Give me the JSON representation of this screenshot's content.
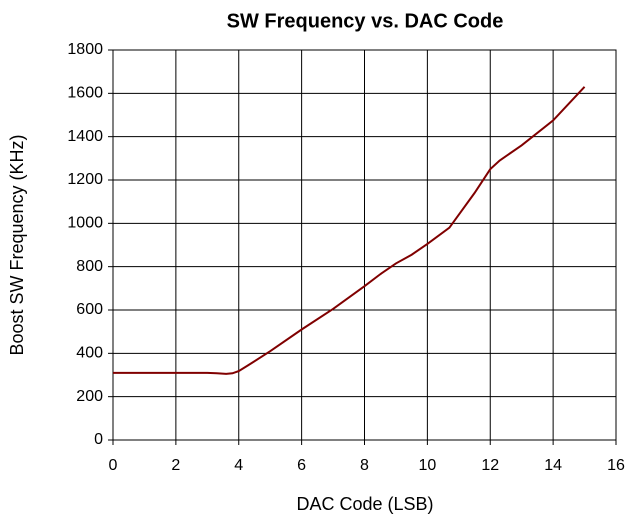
{
  "chart_data": {
    "type": "line",
    "title": "SW Frequency vs. DAC Code",
    "x_label": "DAC Code (LSB)",
    "y_label": "Boost SW Frequency (KHz)",
    "x": [
      0,
      1,
      2,
      3,
      3.3,
      3.6,
      3.8,
      4,
      4.3,
      5,
      6,
      7,
      8,
      8.5,
      9,
      9.5,
      10,
      10.7,
      11,
      11.5,
      12,
      12.3,
      13,
      14,
      15
    ],
    "series": [
      {
        "name": "SW Frequency",
        "color": "#800000",
        "values": [
          310,
          310,
          310,
          310,
          308,
          305,
          308,
          318,
          345,
          410,
          510,
          605,
          710,
          765,
          815,
          855,
          905,
          980,
          1040,
          1140,
          1250,
          1290,
          1360,
          1475,
          1630
        ]
      }
    ],
    "xlim": [
      0,
      16
    ],
    "xticks": [
      0,
      2,
      4,
      6,
      8,
      10,
      12,
      14,
      16
    ],
    "ylim": [
      0,
      1800
    ],
    "yticks": [
      0,
      200,
      400,
      600,
      800,
      1000,
      1200,
      1400,
      1600,
      1800
    ],
    "grid": true
  }
}
